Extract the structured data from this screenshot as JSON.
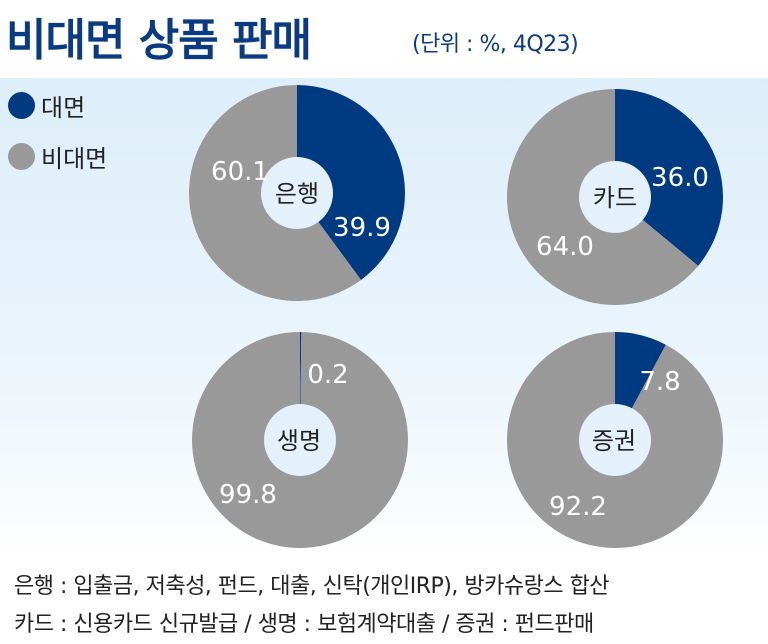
{
  "header": {
    "title": "비대면 상품 판매",
    "subtitle": "(단위 : %, 4Q23)"
  },
  "legend": {
    "items": [
      {
        "label": "대면",
        "color": "#003a80"
      },
      {
        "label": "비대면",
        "color": "#999999"
      }
    ]
  },
  "donuts": [
    {
      "name": "은행",
      "face": "39.9",
      "nonface": "60.1"
    },
    {
      "name": "카드",
      "face": "36.0",
      "nonface": "64.0"
    },
    {
      "name": "생명",
      "face": "0.2",
      "nonface": "99.8"
    },
    {
      "name": "증권",
      "face": "7.8",
      "nonface": "92.2"
    }
  ],
  "notes": {
    "line1": "은행 : 입출금, 저축성, 펀드, 대출, 신탁(개인IRP), 방카슈랑스 합산",
    "line2": "카드 : 신용카드 신규발급  /  생명 : 보험계약대출  /  증권 : 펀드판매"
  },
  "chart_data": {
    "type": "pie",
    "title": "비대면 상품 판매",
    "subtitle": "(단위 : %, 4Q23)",
    "legend": [
      "대면",
      "비대면"
    ],
    "legend_position": "top-left",
    "colors": {
      "대면": "#003a80",
      "비대면": "#999999"
    },
    "charts": [
      {
        "label": "은행",
        "categories": [
          "대면",
          "비대면"
        ],
        "values": [
          39.9,
          60.1
        ]
      },
      {
        "label": "카드",
        "categories": [
          "대면",
          "비대면"
        ],
        "values": [
          36.0,
          64.0
        ]
      },
      {
        "label": "생명",
        "categories": [
          "대면",
          "비대면"
        ],
        "values": [
          0.2,
          99.8
        ]
      },
      {
        "label": "증권",
        "categories": [
          "대면",
          "비대면"
        ],
        "values": [
          7.8,
          92.2
        ]
      }
    ],
    "annotations": [
      "은행 : 입출금, 저축성, 펀드, 대출, 신탁(개인IRP), 방카슈랑스 합산",
      "카드 : 신용카드 신규발급 / 생명 : 보험계약대출 / 증권 : 펀드판매"
    ]
  }
}
